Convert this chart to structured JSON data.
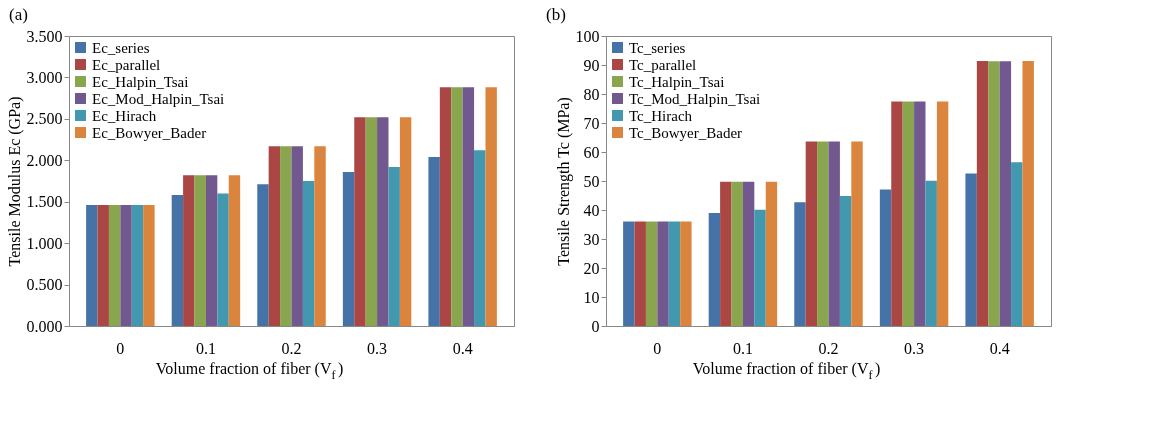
{
  "chart_data": [
    {
      "type": "bar",
      "title": "(a)",
      "xlabel": "Volume fraction of fiber (V$_{f}$)",
      "ylabel": "Tensile Modulus Ec (GPa)",
      "categories": [
        "0",
        "0.1",
        "0.2",
        "0.3",
        "0.4"
      ],
      "ylim": [
        0,
        3.5
      ],
      "yticks": [
        {
          "value": 0,
          "label": "0.000"
        },
        {
          "value": 0.5,
          "label": "0.500"
        },
        {
          "value": 1,
          "label": "1.000"
        },
        {
          "value": 1.5,
          "label": "1.500"
        },
        {
          "value": 2,
          "label": "2.000"
        },
        {
          "value": 2.5,
          "label": "2.500"
        },
        {
          "value": 3,
          "label": "3.000"
        },
        {
          "value": 3.5,
          "label": "3.500"
        }
      ],
      "grid": false,
      "legend": "top left",
      "series": [
        {
          "name": "Ec_series",
          "color": "#4572a7",
          "values": [
            1.46,
            1.58,
            1.71,
            1.86,
            2.04
          ]
        },
        {
          "name": "Ec_parallel",
          "color": "#aa4643",
          "values": [
            1.46,
            1.82,
            2.17,
            2.52,
            2.88
          ]
        },
        {
          "name": "Ec_Halpin_Tsai",
          "color": "#89a54e",
          "values": [
            1.46,
            1.82,
            2.17,
            2.52,
            2.88
          ]
        },
        {
          "name": "Ec_Mod_Halpin_Tsai",
          "color": "#71588f",
          "values": [
            1.46,
            1.82,
            2.17,
            2.52,
            2.88
          ]
        },
        {
          "name": "Ec_Hirach",
          "color": "#4198af",
          "values": [
            1.46,
            1.6,
            1.75,
            1.92,
            2.12
          ]
        },
        {
          "name": "Ec_Bowyer_Bader",
          "color": "#db843d",
          "values": [
            1.46,
            1.82,
            2.17,
            2.52,
            2.88
          ]
        }
      ]
    },
    {
      "type": "bar",
      "title": "(b)",
      "xlabel": "Volume fraction of fiber (V$_{f}$)",
      "ylabel": "Tensile Strength Tc (MPa)",
      "categories": [
        "0",
        "0.1",
        "0.2",
        "0.3",
        "0.4"
      ],
      "ylim": [
        0,
        100
      ],
      "yticks": [
        0,
        10,
        20,
        30,
        40,
        50,
        60,
        70,
        80,
        90,
        100
      ],
      "grid": false,
      "legend": "top left",
      "series": [
        {
          "name": "Tc_series",
          "color": "#4572a7",
          "values": [
            36,
            39,
            42.7,
            47.1,
            52.6
          ]
        },
        {
          "name": "Tc_parallel",
          "color": "#aa4643",
          "values": [
            36,
            49.7,
            63.6,
            77.4,
            91.4
          ]
        },
        {
          "name": "Tc_Halpin_Tsai",
          "color": "#89a54e",
          "values": [
            36,
            49.7,
            63.6,
            77.4,
            91.3
          ]
        },
        {
          "name": "Tc_Mod_Halpin_Tsai",
          "color": "#71588f",
          "values": [
            36,
            49.7,
            63.6,
            77.4,
            91.3
          ]
        },
        {
          "name": "Tc_Hirach",
          "color": "#4198af",
          "values": [
            36,
            40.1,
            44.8,
            50.1,
            56.5
          ]
        },
        {
          "name": "Tc_Bowyer_Bader",
          "color": "#db843d",
          "values": [
            36,
            49.7,
            63.6,
            77.4,
            91.4
          ]
        }
      ]
    }
  ]
}
